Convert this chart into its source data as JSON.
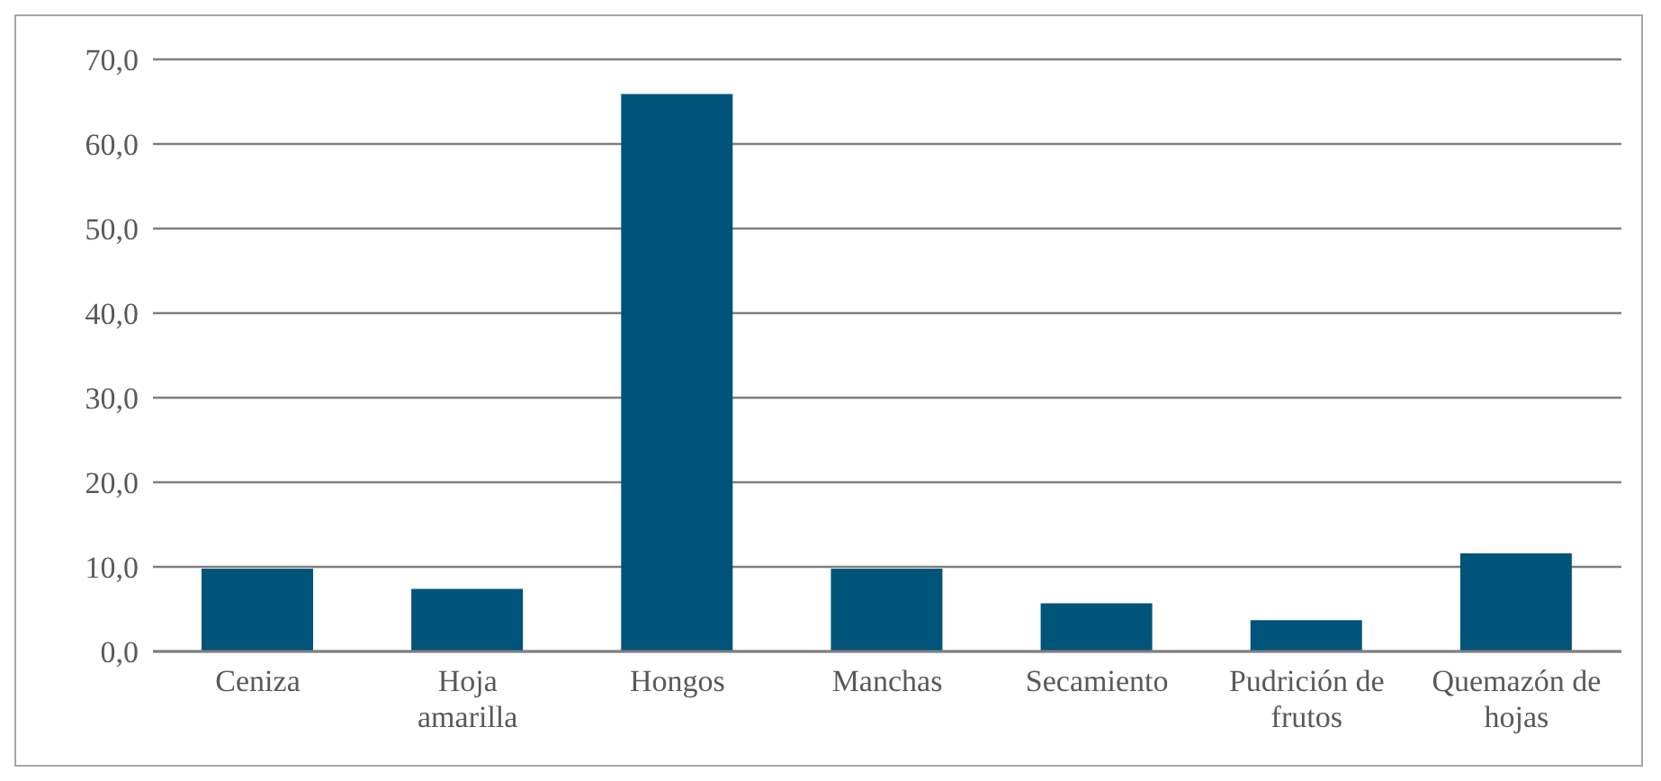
{
  "chart_data": {
    "type": "bar",
    "categories": [
      "Ceniza",
      "Hoja amarilla",
      "Hongos",
      "Manchas",
      "Secamiento",
      "Pudrición de frutos",
      "Quemazón de hojas"
    ],
    "values": [
      9.8,
      7.4,
      65.9,
      9.8,
      5.7,
      3.7,
      11.6
    ],
    "color": "#00547a",
    "ylim": [
      0,
      70
    ],
    "yticks": [
      {
        "value": 0,
        "label": "0,0"
      },
      {
        "value": 10,
        "label": "10,0"
      },
      {
        "value": 20,
        "label": "20,0"
      },
      {
        "value": 30,
        "label": "30,0"
      },
      {
        "value": 40,
        "label": "40,0"
      },
      {
        "value": 50,
        "label": "50,0"
      },
      {
        "value": 60,
        "label": "60,0"
      },
      {
        "value": 70,
        "label": "70,0"
      }
    ],
    "grid": "y"
  }
}
